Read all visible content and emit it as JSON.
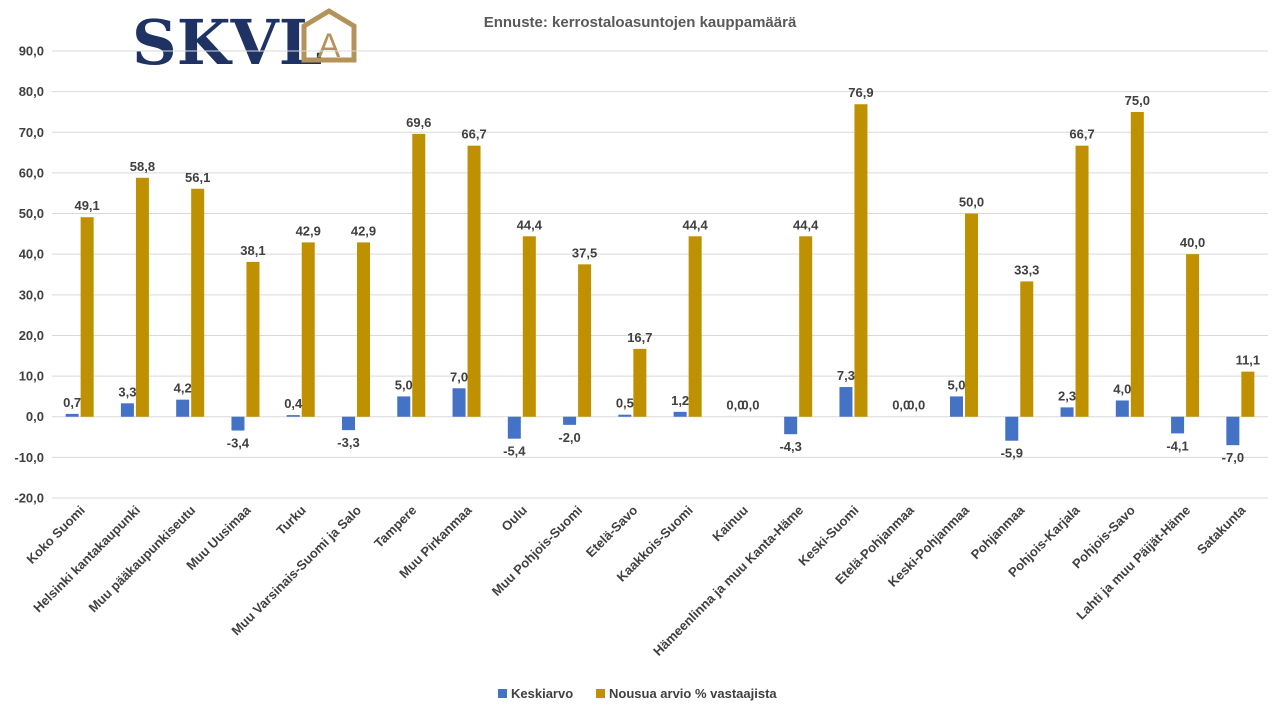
{
  "logo": {
    "text": "SKVL",
    "mark": "A",
    "text_color": "#1f3264",
    "mark_color": "#b4935a"
  },
  "chart_data": {
    "type": "bar",
    "title": "Ennuste: kerrostaloasuntojen kauppamäärä",
    "xlabel": "",
    "ylabel": "",
    "ylim": [
      -20,
      90
    ],
    "yticks": [
      "90,0",
      "80,0",
      "70,0",
      "60,0",
      "50,0",
      "40,0",
      "30,0",
      "20,0",
      "10,0",
      "0,0",
      "-10,0",
      "-20,0"
    ],
    "ytick_values": [
      90,
      80,
      70,
      60,
      50,
      40,
      30,
      20,
      10,
      0,
      -10,
      -20
    ],
    "grid": true,
    "legend_position": "bottom",
    "categories": [
      "Koko Suomi",
      "Helsinki kantakaupunki",
      "Muu pääkaupunkiseutu",
      "Muu Uusimaa",
      "Turku",
      "Muu Varsinais-Suomi ja Salo",
      "Tampere",
      "Muu Pirkanmaa",
      "Oulu",
      "Muu Pohjois-Suomi",
      "Etelä-Savo",
      "Kaakkois-Suomi",
      "Kainuu",
      "Hämeenlinna ja muu Kanta-Häme",
      "Keski-Suomi",
      "Etelä-Pohjanmaa",
      "Keski-Pohjanmaa",
      "Pohjanmaa",
      "Pohjois-Karjala",
      "Pohjois-Savo",
      "Lahti ja muu Päijät-Häme",
      "Satakunta"
    ],
    "series": [
      {
        "name": "Keskiarvo",
        "color": "#4472c4",
        "values": [
          0.7,
          3.3,
          4.2,
          -3.4,
          0.4,
          -3.3,
          5.0,
          7.0,
          -5.4,
          -2.0,
          0.5,
          1.2,
          0.0,
          -4.3,
          7.3,
          0.0,
          5.0,
          -5.9,
          2.3,
          4.0,
          -4.1,
          -7.0
        ],
        "labels": [
          "0,7",
          "3,3",
          "4,2",
          "-3,4",
          "0,4",
          "-3,3",
          "5,0",
          "7,0",
          "-5,4",
          "-2,0",
          "0,5",
          "1,2",
          "0,0",
          "-4,3",
          "7,3",
          "0,0",
          "5,0",
          "-5,9",
          "2,3",
          "4,0",
          "-4,1",
          "-7,0"
        ]
      },
      {
        "name": "Nousua arvio % vastaajista",
        "color": "#bf9000",
        "values": [
          49.1,
          58.8,
          56.1,
          38.1,
          42.9,
          42.9,
          69.6,
          66.7,
          44.4,
          37.5,
          16.7,
          44.4,
          0.0,
          44.4,
          76.9,
          0.0,
          50.0,
          33.3,
          66.7,
          75.0,
          40.0,
          11.1
        ],
        "labels": [
          "49,1",
          "58,8",
          "56,1",
          "38,1",
          "42,9",
          "42,9",
          "69,6",
          "66,7",
          "44,4",
          "37,5",
          "16,7",
          "44,4",
          "0,0",
          "44,4",
          "76,9",
          "0,0",
          "50,0",
          "33,3",
          "66,7",
          "75,0",
          "40,0",
          "11,1"
        ]
      }
    ]
  }
}
